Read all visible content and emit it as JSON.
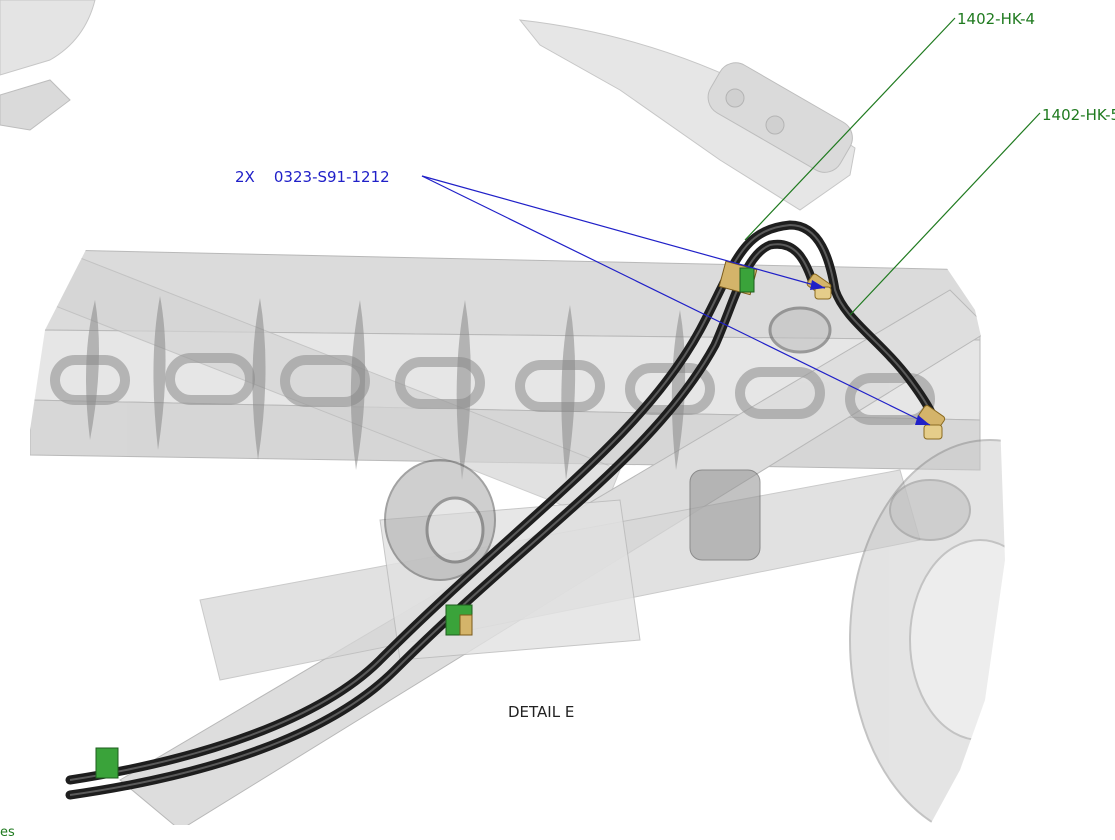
{
  "callouts": {
    "hose_a": "1402-HK-4",
    "hose_b": "1402-HK-5",
    "fitting": "2X    0323-S91-1212",
    "detail_title": "DETAIL E",
    "corner_note": "es"
  },
  "colors": {
    "callout_green": "#1f7a1f",
    "callout_blue": "#2020c8",
    "hose": "#2a2a2a",
    "fitting_brass": "#d4b46a",
    "clamp_green": "#3aa33a",
    "frame_gray": "#bdbdbd"
  }
}
